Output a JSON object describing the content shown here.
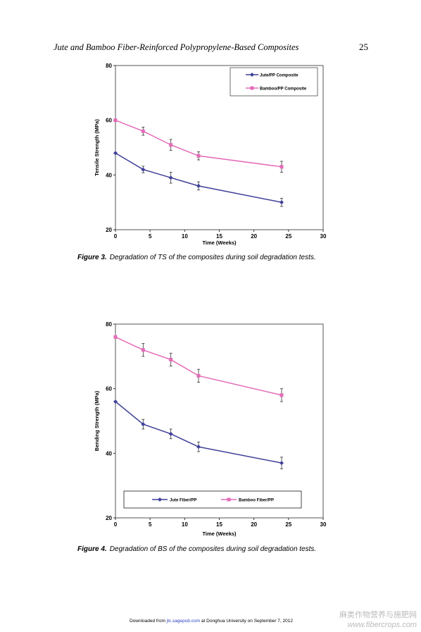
{
  "header": {
    "title": "Jute and Bamboo Fiber-Reinforced Polypropylene-Based Composites",
    "page_number": "25"
  },
  "chart_data": [
    {
      "type": "line",
      "x_label": "Time (Weeks)",
      "y_label": "Tensile Strength (MPa)",
      "caption_label": "Figure 3.",
      "caption": "Degradation of TS of the composites during soil degradation tests.",
      "x": [
        0,
        4,
        8,
        12,
        24
      ],
      "series": [
        {
          "name": "Jute/PP Composite",
          "color": "#3f3f9a",
          "marker": "diamond",
          "values": [
            48,
            42,
            39,
            36,
            30
          ],
          "errors": [
            0,
            1.2,
            2,
            1.5,
            1.5
          ]
        },
        {
          "name": "Bamboo/PP Composite",
          "color": "#e46bb8",
          "marker": "square",
          "values": [
            60,
            56,
            51,
            47,
            43
          ],
          "errors": [
            0,
            1.5,
            2,
            1.5,
            2
          ]
        }
      ],
      "xlim": [
        0,
        30
      ],
      "xticks": [
        0,
        5,
        10,
        15,
        20,
        25,
        30
      ],
      "ylim": [
        20,
        80
      ],
      "yticks": [
        20,
        40,
        60,
        80
      ],
      "legend": "upper right"
    },
    {
      "type": "line",
      "x_label": "Time (Weeks)",
      "y_label": "Bending Strength (MPa)",
      "caption_label": "Figure 4.",
      "caption": "Degradation of BS of the composites during soil degradation tests.",
      "x": [
        0,
        4,
        8,
        12,
        24
      ],
      "series": [
        {
          "name": "Jute Fiber/PP",
          "color": "#3f3f9a",
          "marker": "diamond",
          "values": [
            56,
            49,
            46,
            42,
            37
          ],
          "errors": [
            0,
            1.5,
            1.5,
            1.5,
            1.8
          ]
        },
        {
          "name": "Bamboo Fiber/PP",
          "color": "#e46bb8",
          "marker": "square",
          "values": [
            76,
            72,
            69,
            64,
            58
          ],
          "errors": [
            0,
            2,
            2,
            2,
            2
          ]
        }
      ],
      "xlim": [
        0,
        30
      ],
      "xticks": [
        0,
        5,
        10,
        15,
        20,
        25,
        30
      ],
      "ylim": [
        20,
        80
      ],
      "yticks": [
        20,
        40,
        60,
        80
      ],
      "legend": "lower center"
    }
  ],
  "footer": {
    "prefix": "Downloaded from",
    "link": "jtc.sagepub.com",
    "suffix": "at Donghua University on September 7, 2012"
  },
  "watermark": {
    "name": "麻类作物营养与施肥网",
    "url": "www.fibercrops.com"
  }
}
